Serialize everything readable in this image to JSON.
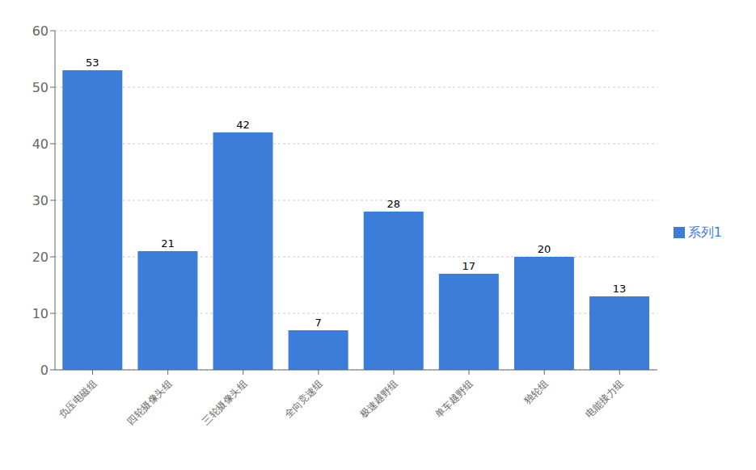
{
  "chart_data": {
    "type": "bar",
    "categories": [
      "负压电磁组",
      "四轮摄像头组",
      "三轮摄像头组",
      "全向竞速组",
      "极速越野组",
      "单车越野组",
      "独轮组",
      "电能接力组"
    ],
    "series": [
      {
        "name": "系列1",
        "color": "#3B7DD8",
        "values": [
          53,
          21,
          42,
          7,
          28,
          17,
          20,
          13
        ]
      }
    ],
    "ylim": [
      0,
      60
    ],
    "yticks": [
      0,
      10,
      20,
      30,
      40,
      50,
      60
    ],
    "grid": true,
    "legend": "right",
    "data_labels": true
  }
}
